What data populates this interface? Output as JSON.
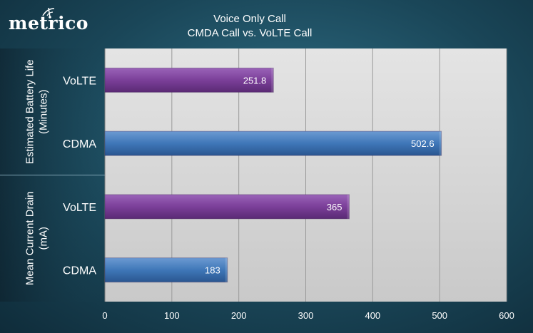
{
  "logo": {
    "text": "metrico"
  },
  "chart_data": {
    "type": "bar",
    "orientation": "horizontal",
    "title": "Voice Only Call",
    "subtitle": "CMDA Call vs. VoLTE Call",
    "xlim": [
      0,
      600
    ],
    "xticks": [
      0,
      100,
      200,
      300,
      400,
      500,
      600
    ],
    "grid": true,
    "groups": [
      {
        "label": "Estimated Battery Life (Minutes)",
        "label_lines": [
          "Estimated Battery Life",
          "(Minutes)"
        ],
        "bars": [
          {
            "category": "VoLTE",
            "value": 251.8,
            "label": "251.8"
          },
          {
            "category": "CDMA",
            "value": 502.6,
            "label": "502.6"
          }
        ]
      },
      {
        "label": "Mean Current Drain (mA)",
        "label_lines": [
          "Mean Current Drain",
          "(mA)"
        ],
        "bars": [
          {
            "category": "VoLTE",
            "value": 365,
            "label": "365"
          },
          {
            "category": "CDMA",
            "value": 183,
            "label": "183"
          }
        ]
      }
    ],
    "colors": {
      "VoLTE": "#7b3f99",
      "CDMA": "#3f77b8"
    }
  }
}
